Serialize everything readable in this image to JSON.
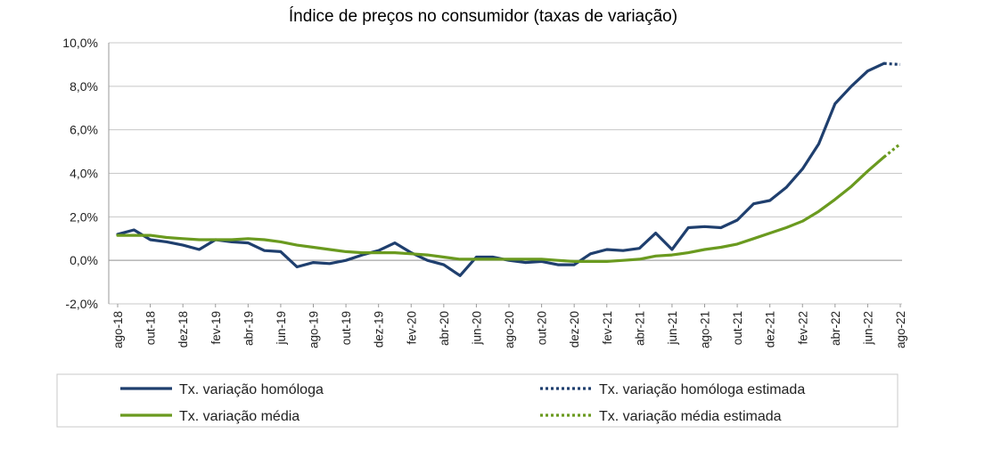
{
  "chart_data": {
    "type": "line",
    "title": "Índice de preços no consumidor  (taxas  de variação)",
    "xlabel": "",
    "ylabel": "",
    "ylim": [
      -2.0,
      10.0
    ],
    "y_ticks": [
      "-2,0%",
      "0,0%",
      "2,0%",
      "4,0%",
      "6,0%",
      "8,0%",
      "10,0%"
    ],
    "y_tick_values": [
      -2,
      0,
      2,
      4,
      6,
      8,
      10
    ],
    "x": [
      "ago-18",
      "set-18",
      "out-18",
      "nov-18",
      "dez-18",
      "jan-19",
      "fev-19",
      "mar-19",
      "abr-19",
      "mai-19",
      "jun-19",
      "jul-19",
      "ago-19",
      "set-19",
      "out-19",
      "nov-19",
      "dez-19",
      "jan-20",
      "fev-20",
      "mar-20",
      "abr-20",
      "mai-20",
      "jun-20",
      "jul-20",
      "ago-20",
      "set-20",
      "out-20",
      "nov-20",
      "dez-20",
      "jan-21",
      "fev-21",
      "mar-21",
      "abr-21",
      "mai-21",
      "jun-21",
      "jul-21",
      "ago-21",
      "set-21",
      "out-21",
      "nov-21",
      "dez-21",
      "jan-22",
      "fev-22",
      "mar-22",
      "abr-22",
      "mai-22",
      "jun-22",
      "jul-22",
      "ago-22"
    ],
    "x_tick_labels": [
      "ago-18",
      "out-18",
      "dez-18",
      "fev-19",
      "abr-19",
      "jun-19",
      "ago-19",
      "out-19",
      "dez-19",
      "fev-20",
      "abr-20",
      "jun-20",
      "ago-20",
      "out-20",
      "dez-20",
      "fev-21",
      "abr-21",
      "jun-21",
      "ago-21",
      "out-21",
      "dez-21",
      "fev-22",
      "abr-22",
      "jun-22",
      "ago-22"
    ],
    "series": [
      {
        "name": "Tx. variação homóloga",
        "color": "#1f3f6e",
        "style": "solid",
        "values": [
          1.2,
          1.4,
          0.95,
          0.85,
          0.7,
          0.5,
          0.95,
          0.85,
          0.8,
          0.45,
          0.4,
          -0.3,
          -0.1,
          -0.15,
          0.0,
          0.25,
          0.45,
          0.8,
          0.35,
          0.0,
          -0.2,
          -0.7,
          0.15,
          0.15,
          0.0,
          -0.1,
          -0.05,
          -0.2,
          -0.2,
          0.3,
          0.5,
          0.45,
          0.55,
          1.25,
          0.5,
          1.5,
          1.55,
          1.5,
          1.85,
          2.6,
          2.75,
          3.35,
          4.2,
          5.35,
          7.2,
          8.0,
          8.7,
          9.05,
          null
        ]
      },
      {
        "name": "Tx. variação homóloga estimada",
        "color": "#1f3f6e",
        "style": "dotted",
        "values": [
          null,
          null,
          null,
          null,
          null,
          null,
          null,
          null,
          null,
          null,
          null,
          null,
          null,
          null,
          null,
          null,
          null,
          null,
          null,
          null,
          null,
          null,
          null,
          null,
          null,
          null,
          null,
          null,
          null,
          null,
          null,
          null,
          null,
          null,
          null,
          null,
          null,
          null,
          null,
          null,
          null,
          null,
          null,
          null,
          null,
          null,
          null,
          9.05,
          9.0
        ]
      },
      {
        "name": "Tx. variação média",
        "color": "#6a9a1f",
        "style": "solid",
        "values": [
          1.15,
          1.15,
          1.15,
          1.05,
          1.0,
          0.95,
          0.95,
          0.95,
          1.0,
          0.95,
          0.85,
          0.7,
          0.6,
          0.5,
          0.4,
          0.35,
          0.35,
          0.35,
          0.3,
          0.25,
          0.15,
          0.05,
          0.05,
          0.05,
          0.05,
          0.05,
          0.05,
          0.0,
          -0.05,
          -0.05,
          -0.05,
          0.0,
          0.05,
          0.2,
          0.25,
          0.35,
          0.5,
          0.6,
          0.75,
          1.0,
          1.25,
          1.5,
          1.8,
          2.25,
          2.8,
          3.4,
          4.1,
          4.75,
          null
        ]
      },
      {
        "name": "Tx. variação média  estimada",
        "color": "#6a9a1f",
        "style": "dotted",
        "values": [
          null,
          null,
          null,
          null,
          null,
          null,
          null,
          null,
          null,
          null,
          null,
          null,
          null,
          null,
          null,
          null,
          null,
          null,
          null,
          null,
          null,
          null,
          null,
          null,
          null,
          null,
          null,
          null,
          null,
          null,
          null,
          null,
          null,
          null,
          null,
          null,
          null,
          null,
          null,
          null,
          null,
          null,
          null,
          null,
          null,
          null,
          null,
          4.75,
          5.35
        ]
      }
    ],
    "grid": true,
    "legend_position": "bottom"
  }
}
